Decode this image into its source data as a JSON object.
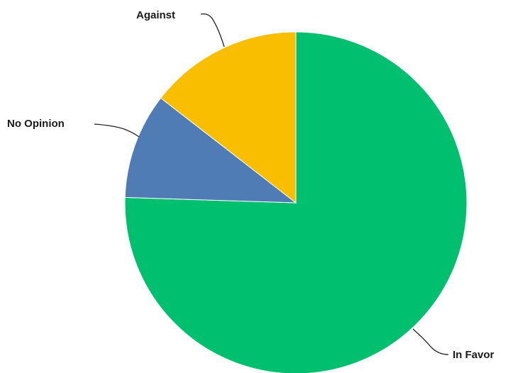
{
  "chart_data": {
    "type": "pie",
    "title": "",
    "start": "12 o'clock",
    "direction": "clockwise",
    "series": [
      {
        "values": [
          {
            "label": "In Favor",
            "value": 75.5,
            "color": "#00bf6f"
          },
          {
            "label": "No Opinion",
            "value": 10,
            "color": "#507cb6"
          },
          {
            "label": "Against",
            "value": 14.5,
            "color": "#f9be00"
          }
        ]
      }
    ],
    "legend": "none",
    "labels": "outside with leader lines"
  }
}
